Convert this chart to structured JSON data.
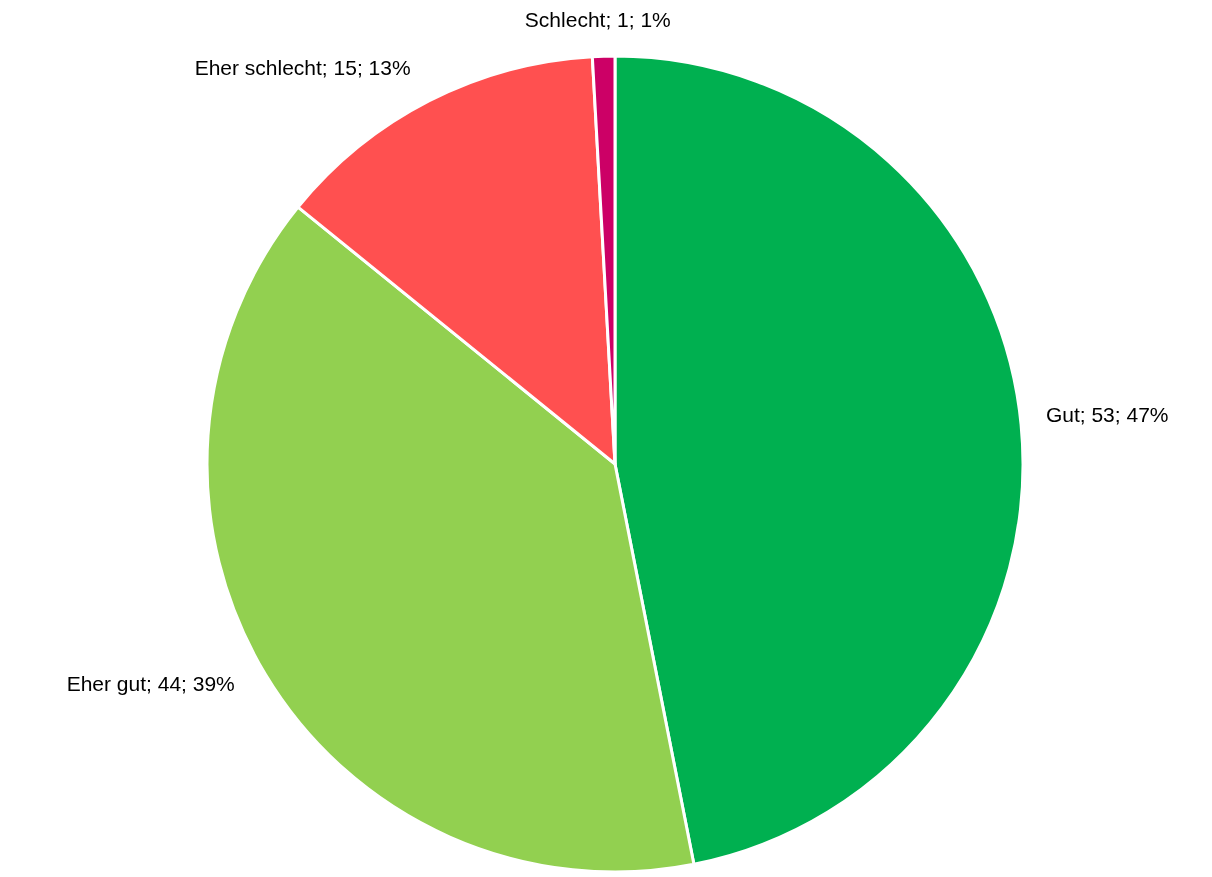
{
  "chart_data": {
    "type": "pie",
    "categories": [
      "Gut",
      "Eher gut",
      "Eher schlecht",
      "Schlecht"
    ],
    "values": [
      53,
      44,
      15,
      1
    ],
    "colors": [
      "#00b050",
      "#92d050",
      "#ff5050",
      "#cc0066"
    ],
    "value_labels": [
      "53; 47%",
      "44; 39%",
      "15; 13%",
      "1; 1%"
    ],
    "legend": false
  }
}
